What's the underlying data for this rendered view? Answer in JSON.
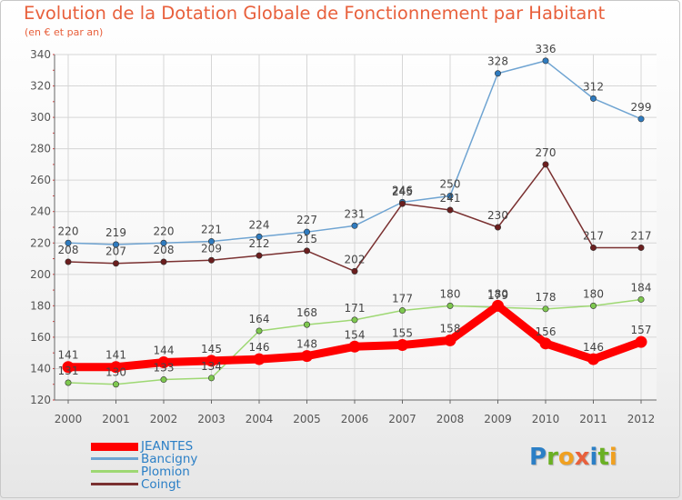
{
  "title": "Evolution de la Dotation Globale de Fonctionnement par Habitant",
  "subtitle": "(en € et par an)",
  "logo": {
    "text": "Proxiti",
    "letters": [
      {
        "ch": "P",
        "color": "#2b7fc6"
      },
      {
        "ch": "r",
        "color": "#6ab023"
      },
      {
        "ch": "o",
        "color": "#f0a020"
      },
      {
        "ch": "x",
        "color": "#e8603c"
      },
      {
        "ch": "i",
        "color": "#2b7fc6"
      },
      {
        "ch": "t",
        "color": "#6ab023"
      },
      {
        "ch": "i",
        "color": "#f0a020"
      }
    ]
  },
  "chart_data": {
    "type": "line",
    "title": "Evolution de la Dotation Globale de Fonctionnement par Habitant",
    "subtitle": "(en € et par an)",
    "xlabel": "",
    "ylabel": "",
    "ylim": [
      120,
      340
    ],
    "yticks": [
      120,
      140,
      160,
      180,
      200,
      220,
      240,
      260,
      280,
      300,
      320,
      340
    ],
    "grid": true,
    "legend_position": "bottom-left",
    "categories": [
      "2000",
      "2001",
      "2002",
      "2003",
      "2004",
      "2005",
      "2006",
      "2007",
      "2008",
      "2009",
      "2010",
      "2011",
      "2012"
    ],
    "series": [
      {
        "name": "Bancigny",
        "color": "#6fa4d2",
        "marker": "#2f7bbf",
        "thick": false,
        "values": [
          220,
          219,
          220,
          221,
          224,
          227,
          231,
          246,
          250,
          328,
          336,
          312,
          299
        ]
      },
      {
        "name": "Coingt",
        "color": "#7a3030",
        "marker": "#6b1e1e",
        "thick": false,
        "values": [
          208,
          207,
          208,
          209,
          212,
          215,
          202,
          245,
          241,
          230,
          270,
          217,
          217
        ]
      },
      {
        "name": "Plomion",
        "color": "#9ed873",
        "marker": "#7ec84f",
        "thick": false,
        "values": [
          131,
          130,
          133,
          134,
          164,
          168,
          171,
          177,
          180,
          179,
          178,
          180,
          184
        ]
      },
      {
        "name": "JEANTES",
        "color": "#ff0000",
        "marker": "#ff0000",
        "thick": true,
        "values": [
          141,
          141,
          144,
          145,
          146,
          148,
          154,
          155,
          158,
          180,
          156,
          146,
          157
        ]
      }
    ]
  },
  "legend": [
    {
      "name": "JEANTES",
      "color": "#ff0000",
      "text_color": "#2b7fc6",
      "thick": true
    },
    {
      "name": "Bancigny",
      "color": "#6fa4d2",
      "text_color": "#2b7fc6",
      "thick": false
    },
    {
      "name": "Plomion",
      "color": "#9ed873",
      "text_color": "#2b7fc6",
      "thick": false
    },
    {
      "name": "Coingt",
      "color": "#7a3030",
      "text_color": "#2b7fc6",
      "thick": false
    }
  ]
}
